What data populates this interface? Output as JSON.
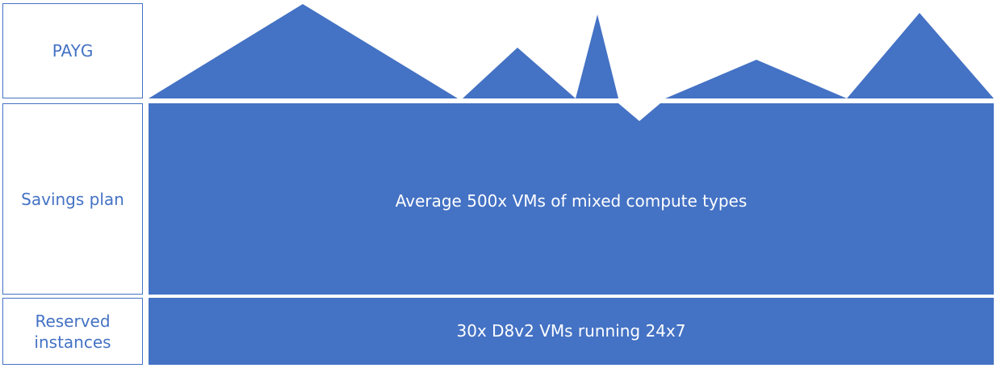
{
  "rows": {
    "payg": {
      "label": "PAYG"
    },
    "savings_plan": {
      "label": "Savings plan",
      "description": "Average 500x VMs of mixed compute types"
    },
    "reserved": {
      "label": "Reserved\ninstances",
      "description": "30x D8v2 VMs running 24x7"
    }
  },
  "colors": {
    "fill": "#4472c4",
    "label_text": "#4472c4",
    "band_text": "#ffffff",
    "background": "#ffffff"
  }
}
